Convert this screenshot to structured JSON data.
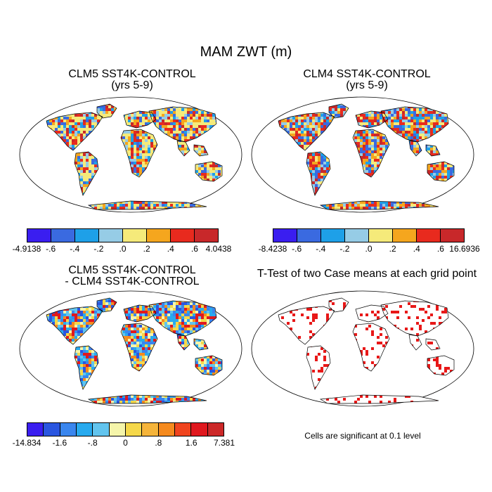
{
  "figure": {
    "title": "MAM ZWT (m)"
  },
  "panels": [
    {
      "title_line1": "CLM5 SST4K-CONTROL",
      "title_line2": "(yrs 5-9)"
    },
    {
      "title_line1": "CLM4 SST4K-CONTROL",
      "title_line2": "(yrs 5-9)"
    },
    {
      "title_line1": "CLM5 SST4K-CONTROL",
      "title_line2": "- CLM4 SST4K-CONTROL"
    },
    {
      "title_line1": "T-Test of two Case means at each grid point",
      "title_line2": ""
    }
  ],
  "colorbars": [
    {
      "colors": [
        "#3a1ef0",
        "#3a6ae0",
        "#1ea0e8",
        "#96cce6",
        "#f5ea7a",
        "#f5a61e",
        "#e82a1e",
        "#c8282a"
      ],
      "labels": [
        "-4.9138",
        "-.6",
        "-.4",
        "-.2",
        ".0",
        ".2",
        ".4",
        ".6",
        "4.0438"
      ]
    },
    {
      "colors": [
        "#3a1ef0",
        "#3a6ae0",
        "#1ea0e8",
        "#96cce6",
        "#f5ea7a",
        "#f5a61e",
        "#e82a1e",
        "#c8282a"
      ],
      "labels": [
        "-8.4238",
        "-.6",
        "-.4",
        "-.2",
        ".0",
        ".2",
        ".4",
        ".6",
        "16.6936"
      ]
    },
    {
      "colors": [
        "#3a1ef0",
        "#2a56e0",
        "#3a86ee",
        "#28aaee",
        "#62c4ee",
        "#f5f5aa",
        "#f5d84a",
        "#f5b43a",
        "#f58a1e",
        "#f0441e",
        "#e0181e",
        "#cc2828"
      ],
      "labels": [
        "-14.834",
        "-1.6",
        "-.8",
        "0",
        ".8",
        "1.6",
        "7.381"
      ]
    }
  ],
  "note": "Cells are significant at 0.1 level",
  "colors": {
    "land_fill": "#f5ea7a",
    "significant": "#e81818",
    "coast": "#000000"
  }
}
